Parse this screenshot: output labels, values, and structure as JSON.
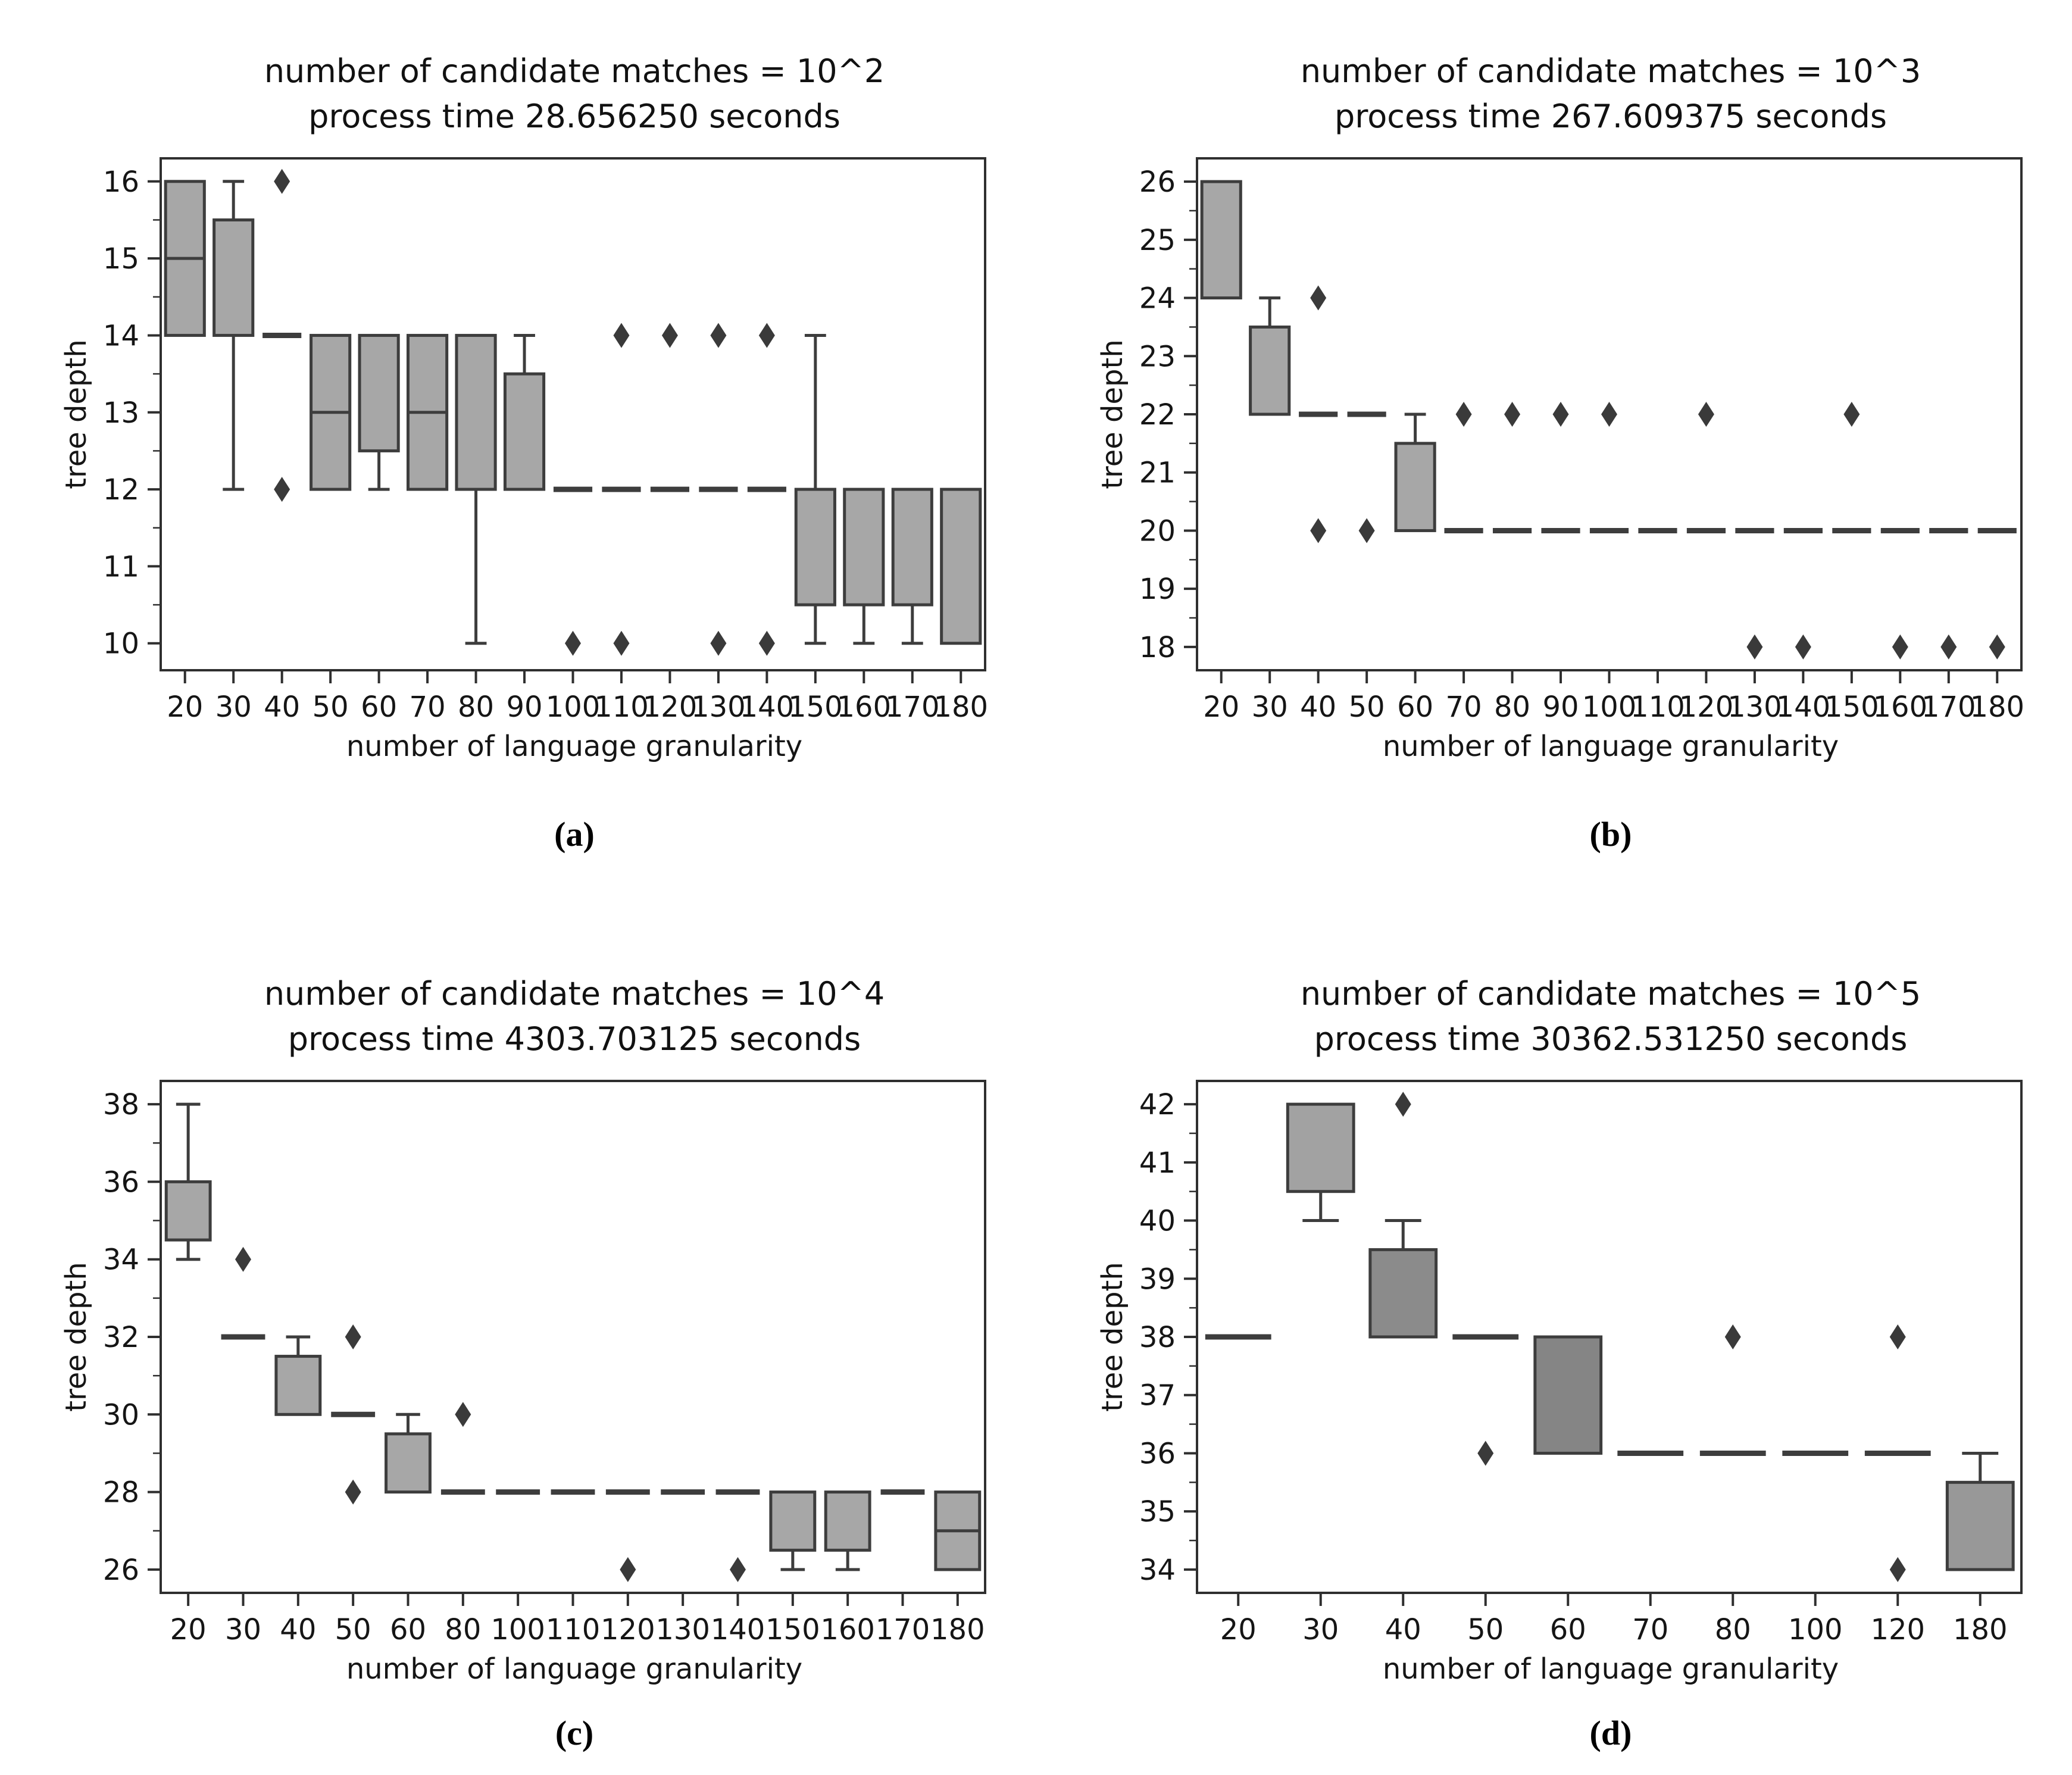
{
  "page": {
    "background": "#ffffff"
  },
  "styles": {
    "box_fill": "#a7a7a7",
    "box_stroke": "#3d3d3d",
    "outlier_fill": "#3a3a3a",
    "axis_color": "#2f2f2f",
    "text_color": "#151515"
  },
  "chart_data": [
    {
      "type": "boxplot",
      "panel": "a",
      "caption": "(a)",
      "title_line1": "number of candidate matches = 10^2",
      "title_line2": "process time 28.656250 seconds",
      "xlabel": "number of language granularity",
      "ylabel": "tree depth",
      "categories": [
        20,
        30,
        40,
        50,
        60,
        70,
        80,
        90,
        100,
        110,
        120,
        130,
        140,
        150,
        160,
        170,
        180
      ],
      "yticks": [
        10,
        11,
        12,
        13,
        14,
        15,
        16
      ],
      "minor_tick_step": 0.5,
      "ylim": [
        9.65,
        16.3
      ],
      "legend": "none",
      "grid": false,
      "boxes": [
        {
          "x": 20,
          "q1": 14,
          "q3": 16,
          "med": 15
        },
        {
          "x": 30,
          "q1": 14,
          "q3": 15.5,
          "med": 14,
          "wlo": 12,
          "whi": 16
        },
        {
          "x": 40,
          "flat": 14,
          "out": [
            16,
            12
          ]
        },
        {
          "x": 50,
          "q1": 12,
          "q3": 14,
          "med": 13
        },
        {
          "x": 60,
          "q1": 12.5,
          "q3": 14,
          "wlo": 12
        },
        {
          "x": 70,
          "q1": 12,
          "q3": 14,
          "med": 13
        },
        {
          "x": 80,
          "q1": 12,
          "q3": 14,
          "wlo": 10
        },
        {
          "x": 90,
          "q1": 12,
          "q3": 13.5,
          "whi": 14
        },
        {
          "x": 100,
          "flat": 12,
          "out": [
            10
          ]
        },
        {
          "x": 110,
          "flat": 12,
          "out": [
            14,
            10
          ]
        },
        {
          "x": 120,
          "flat": 12,
          "out": [
            14
          ]
        },
        {
          "x": 130,
          "flat": 12,
          "out": [
            14,
            10
          ]
        },
        {
          "x": 140,
          "flat": 12,
          "out": [
            14,
            10
          ]
        },
        {
          "x": 150,
          "q1": 10.5,
          "q3": 12,
          "wlo": 10,
          "whi": 14
        },
        {
          "x": 160,
          "q1": 10.5,
          "q3": 12,
          "wlo": 10
        },
        {
          "x": 170,
          "q1": 10.5,
          "q3": 12,
          "wlo": 10
        },
        {
          "x": 180,
          "q1": 10,
          "q3": 12
        }
      ]
    },
    {
      "type": "boxplot",
      "panel": "b",
      "caption": "(b)",
      "title_line1": "number of candidate matches = 10^3",
      "title_line2": "process time 267.609375 seconds",
      "xlabel": "number of language granularity",
      "ylabel": "tree depth",
      "categories": [
        20,
        30,
        40,
        50,
        60,
        70,
        80,
        90,
        100,
        110,
        120,
        130,
        140,
        150,
        160,
        170,
        180
      ],
      "yticks": [
        18,
        19,
        20,
        21,
        22,
        23,
        24,
        25,
        26
      ],
      "minor_tick_step": 0.5,
      "ylim": [
        17.6,
        26.4
      ],
      "legend": "none",
      "grid": false,
      "boxes": [
        {
          "x": 20,
          "q1": 24,
          "q3": 26
        },
        {
          "x": 30,
          "q1": 22,
          "q3": 23.5,
          "whi": 24
        },
        {
          "x": 40,
          "flat": 22,
          "out": [
            24,
            20
          ]
        },
        {
          "x": 50,
          "flat": 22,
          "out": [
            20
          ]
        },
        {
          "x": 60,
          "q1": 20,
          "q3": 21.5,
          "whi": 22
        },
        {
          "x": 70,
          "flat": 20,
          "out": [
            22
          ]
        },
        {
          "x": 80,
          "flat": 20,
          "out": [
            22
          ]
        },
        {
          "x": 90,
          "flat": 20,
          "out": [
            22
          ]
        },
        {
          "x": 100,
          "flat": 20,
          "out": [
            22
          ]
        },
        {
          "x": 110,
          "flat": 20
        },
        {
          "x": 120,
          "flat": 20,
          "out": [
            22
          ]
        },
        {
          "x": 130,
          "flat": 20,
          "out": [
            18
          ]
        },
        {
          "x": 140,
          "flat": 20,
          "out": [
            18
          ]
        },
        {
          "x": 150,
          "flat": 20,
          "out": [
            22
          ]
        },
        {
          "x": 160,
          "flat": 20,
          "out": [
            18
          ]
        },
        {
          "x": 170,
          "flat": 20,
          "out": [
            18
          ]
        },
        {
          "x": 180,
          "flat": 20,
          "out": [
            18
          ]
        }
      ]
    },
    {
      "type": "boxplot",
      "panel": "c",
      "caption": "(c)",
      "title_line1": "number of candidate matches = 10^4",
      "title_line2": "process time 4303.703125 seconds",
      "xlabel": "number of language granularity",
      "ylabel": "tree depth",
      "categories": [
        20,
        30,
        40,
        50,
        60,
        80,
        100,
        110,
        120,
        130,
        140,
        150,
        160,
        170,
        180
      ],
      "yticks": [
        26,
        28,
        30,
        32,
        34,
        36,
        38
      ],
      "minor_tick_step": 1,
      "ylim": [
        25.4,
        38.6
      ],
      "legend": "none",
      "grid": false,
      "boxes": [
        {
          "x": 20,
          "q1": 34.5,
          "q3": 36,
          "wlo": 34,
          "whi": 38
        },
        {
          "x": 30,
          "flat": 32,
          "out": [
            34
          ]
        },
        {
          "x": 40,
          "q1": 30,
          "q3": 31.5,
          "whi": 32
        },
        {
          "x": 50,
          "flat": 30,
          "out": [
            32,
            28
          ]
        },
        {
          "x": 60,
          "q1": 28,
          "q3": 29.5,
          "whi": 30
        },
        {
          "x": 80,
          "flat": 28,
          "out": [
            30
          ]
        },
        {
          "x": 100,
          "flat": 28
        },
        {
          "x": 110,
          "flat": 28
        },
        {
          "x": 120,
          "flat": 28,
          "out": [
            26
          ]
        },
        {
          "x": 130,
          "flat": 28
        },
        {
          "x": 140,
          "flat": 28,
          "out": [
            26
          ]
        },
        {
          "x": 150,
          "q1": 26.5,
          "q3": 28,
          "wlo": 26
        },
        {
          "x": 160,
          "q1": 26.5,
          "q3": 28,
          "wlo": 26
        },
        {
          "x": 170,
          "flat": 28
        },
        {
          "x": 180,
          "q1": 26,
          "q3": 28,
          "med": 27
        }
      ]
    },
    {
      "type": "boxplot",
      "panel": "d",
      "caption": "(d)",
      "title_line1": "number of candidate matches = 10^5",
      "title_line2": "process time 30362.531250 seconds",
      "xlabel": "number of language granularity",
      "ylabel": "tree depth",
      "categories": [
        20,
        30,
        40,
        50,
        60,
        70,
        80,
        100,
        120,
        180
      ],
      "yticks": [
        34,
        35,
        36,
        37,
        38,
        39,
        40,
        41,
        42
      ],
      "minor_tick_step": 0.5,
      "ylim": [
        33.6,
        42.4
      ],
      "legend": "none",
      "grid": false,
      "boxes": [
        {
          "x": 20,
          "flat": 38
        },
        {
          "x": 30,
          "q1": 40.5,
          "q3": 42,
          "wlo": 40,
          "fill": "#a2a2a2"
        },
        {
          "x": 40,
          "q1": 38,
          "q3": 39.5,
          "whi": 40,
          "out": [
            42
          ],
          "fill": "#8b8b8b"
        },
        {
          "x": 50,
          "flat": 38,
          "out": [
            36
          ]
        },
        {
          "x": 60,
          "q1": 36,
          "q3": 38,
          "fill": "#858585"
        },
        {
          "x": 70,
          "flat": 36
        },
        {
          "x": 80,
          "flat": 36,
          "out": [
            38
          ]
        },
        {
          "x": 100,
          "flat": 36
        },
        {
          "x": 120,
          "flat": 36,
          "out": [
            38,
            34
          ]
        },
        {
          "x": 180,
          "q1": 34,
          "q3": 35.5,
          "whi": 36,
          "fill": "#989898"
        }
      ]
    }
  ]
}
